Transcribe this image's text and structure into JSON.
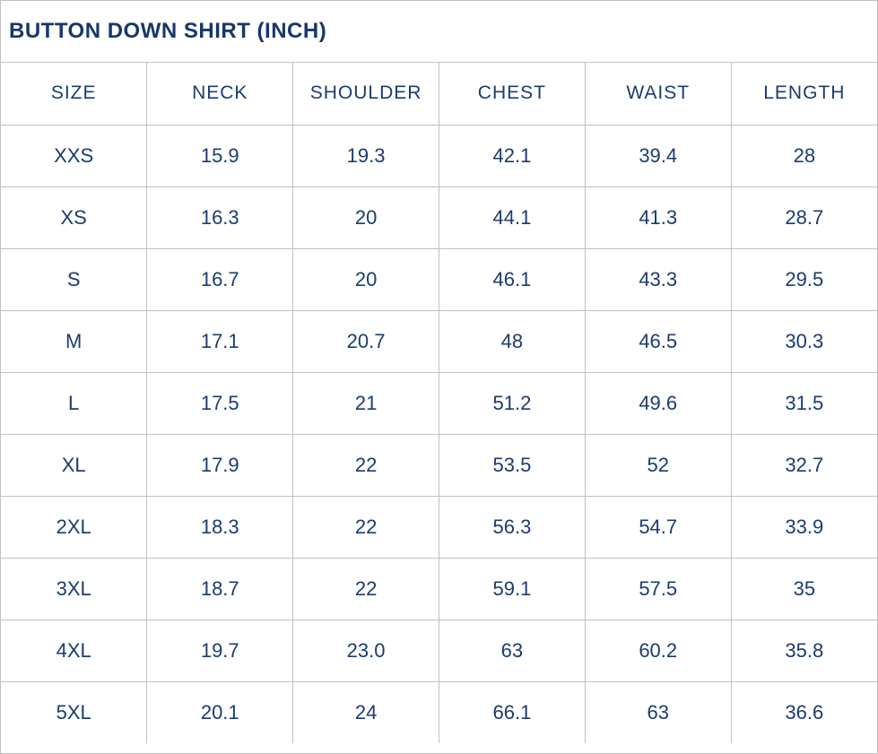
{
  "title": "BUTTON DOWN SHIRT (INCH)",
  "colors": {
    "text": "#1c3b6e",
    "title": "#17376a",
    "border": "#c1c1c1",
    "background": "#ffffff"
  },
  "chart_data": {
    "type": "table",
    "title": "BUTTON DOWN SHIRT (INCH)",
    "unit": "INCH",
    "columns": [
      "SIZE",
      "NECK",
      "SHOULDER",
      "CHEST",
      "WAIST",
      "LENGTH"
    ],
    "rows": [
      [
        "XXS",
        "15.9",
        "19.3",
        "42.1",
        "39.4",
        "28"
      ],
      [
        "XS",
        "16.3",
        "20",
        "44.1",
        "41.3",
        "28.7"
      ],
      [
        "S",
        "16.7",
        "20",
        "46.1",
        "43.3",
        "29.5"
      ],
      [
        "M",
        "17.1",
        "20.7",
        "48",
        "46.5",
        "30.3"
      ],
      [
        "L",
        "17.5",
        "21",
        "51.2",
        "49.6",
        "31.5"
      ],
      [
        "XL",
        "17.9",
        "22",
        "53.5",
        "52",
        "32.7"
      ],
      [
        "2XL",
        "18.3",
        "22",
        "56.3",
        "54.7",
        "33.9"
      ],
      [
        "3XL",
        "18.7",
        "22",
        "59.1",
        "57.5",
        "35"
      ],
      [
        "4XL",
        "19.7",
        "23.0",
        "63",
        "60.2",
        "35.8"
      ],
      [
        "5XL",
        "20.1",
        "24",
        "66.1",
        "63",
        "36.6"
      ]
    ]
  }
}
